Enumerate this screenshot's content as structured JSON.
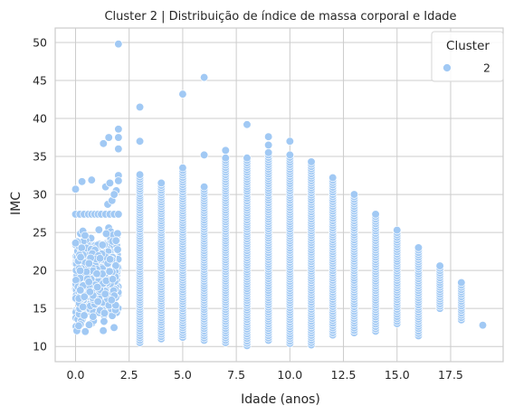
{
  "chart_data": {
    "type": "scatter",
    "title": "Cluster 2 | Distribuição de índice de massa corporal e Idade",
    "xlabel": "Idade (anos)",
    "ylabel": "IMC",
    "xlim": [
      -0.95,
      19.95
    ],
    "ylim": [
      8.0,
      51.9
    ],
    "xticks": [
      0.0,
      2.5,
      5.0,
      7.5,
      10.0,
      12.5,
      15.0,
      17.5
    ],
    "xtick_labels": [
      "0.0",
      "2.5",
      "5.0",
      "7.5",
      "10.0",
      "12.5",
      "15.0",
      "17.5"
    ],
    "yticks": [
      10,
      15,
      20,
      25,
      30,
      35,
      40,
      45,
      50
    ],
    "ytick_labels": [
      "10",
      "15",
      "20",
      "25",
      "30",
      "35",
      "40",
      "45",
      "50"
    ],
    "grid": true,
    "legend": {
      "title": "Cluster",
      "position": "top-right",
      "entries": [
        "2"
      ]
    },
    "series": [
      {
        "name": "2",
        "color": "#a1c9f4",
        "columns": [
          {
            "x": 3,
            "ymin": 10.5,
            "ymax": 32.6,
            "outliers": [
              37.0,
              41.5
            ]
          },
          {
            "x": 4,
            "ymin": 11.0,
            "ymax": 31.5
          },
          {
            "x": 5,
            "ymin": 11.2,
            "ymax": 33.5,
            "outliers": [
              43.2
            ]
          },
          {
            "x": 6,
            "ymin": 10.8,
            "ymax": 31.0,
            "outliers": [
              35.2,
              45.4
            ]
          },
          {
            "x": 7,
            "ymin": 10.5,
            "ymax": 34.8,
            "outliers": [
              35.8
            ]
          },
          {
            "x": 8,
            "ymin": 10.1,
            "ymax": 34.8,
            "outliers": [
              39.2
            ]
          },
          {
            "x": 9,
            "ymin": 10.8,
            "ymax": 35.5,
            "outliers": [
              36.5,
              37.6
            ]
          },
          {
            "x": 10,
            "ymin": 10.4,
            "ymax": 35.2,
            "outliers": [
              37.0
            ]
          },
          {
            "x": 11,
            "ymin": 10.2,
            "ymax": 34.3
          },
          {
            "x": 12,
            "ymin": 11.5,
            "ymax": 32.2
          },
          {
            "x": 13,
            "ymin": 11.8,
            "ymax": 30.0
          },
          {
            "x": 14,
            "ymin": 12.0,
            "ymax": 27.4
          },
          {
            "x": 15,
            "ymin": 13.0,
            "ymax": 25.3
          },
          {
            "x": 16,
            "ymin": 11.4,
            "ymax": 23.0
          },
          {
            "x": 17,
            "ymin": 15.0,
            "ymax": 20.6
          },
          {
            "x": 18,
            "ymin": 13.5,
            "ymax": 18.4
          }
        ],
        "dense_region": {
          "xmin": 0.0,
          "xmax": 2.0,
          "ymin": 10.3,
          "ymax": 27.4
        },
        "extra_points": [
          {
            "x": 0.0,
            "y": 30.7
          },
          {
            "x": 0.3,
            "y": 31.7
          },
          {
            "x": 0.75,
            "y": 31.9
          },
          {
            "x": 1.4,
            "y": 31.0
          },
          {
            "x": 1.6,
            "y": 31.5
          },
          {
            "x": 1.3,
            "y": 36.7
          },
          {
            "x": 1.55,
            "y": 37.5
          },
          {
            "x": 2.0,
            "y": 49.8
          },
          {
            "x": 2.0,
            "y": 38.6
          },
          {
            "x": 2.0,
            "y": 37.5
          },
          {
            "x": 2.0,
            "y": 36.0
          },
          {
            "x": 2.0,
            "y": 32.5
          },
          {
            "x": 2.0,
            "y": 31.8
          },
          {
            "x": 1.9,
            "y": 30.5
          },
          {
            "x": 1.5,
            "y": 28.7
          },
          {
            "x": 1.7,
            "y": 29.2
          },
          {
            "x": 1.8,
            "y": 30.0
          },
          {
            "x": 19.0,
            "y": 12.8
          }
        ],
        "repeated_value_row": {
          "y": 27.4,
          "x": [
            0.0,
            0.2,
            0.4,
            0.6,
            0.75,
            0.9,
            1.05,
            1.2,
            1.4,
            1.6,
            1.8,
            2.0
          ]
        }
      }
    ]
  }
}
